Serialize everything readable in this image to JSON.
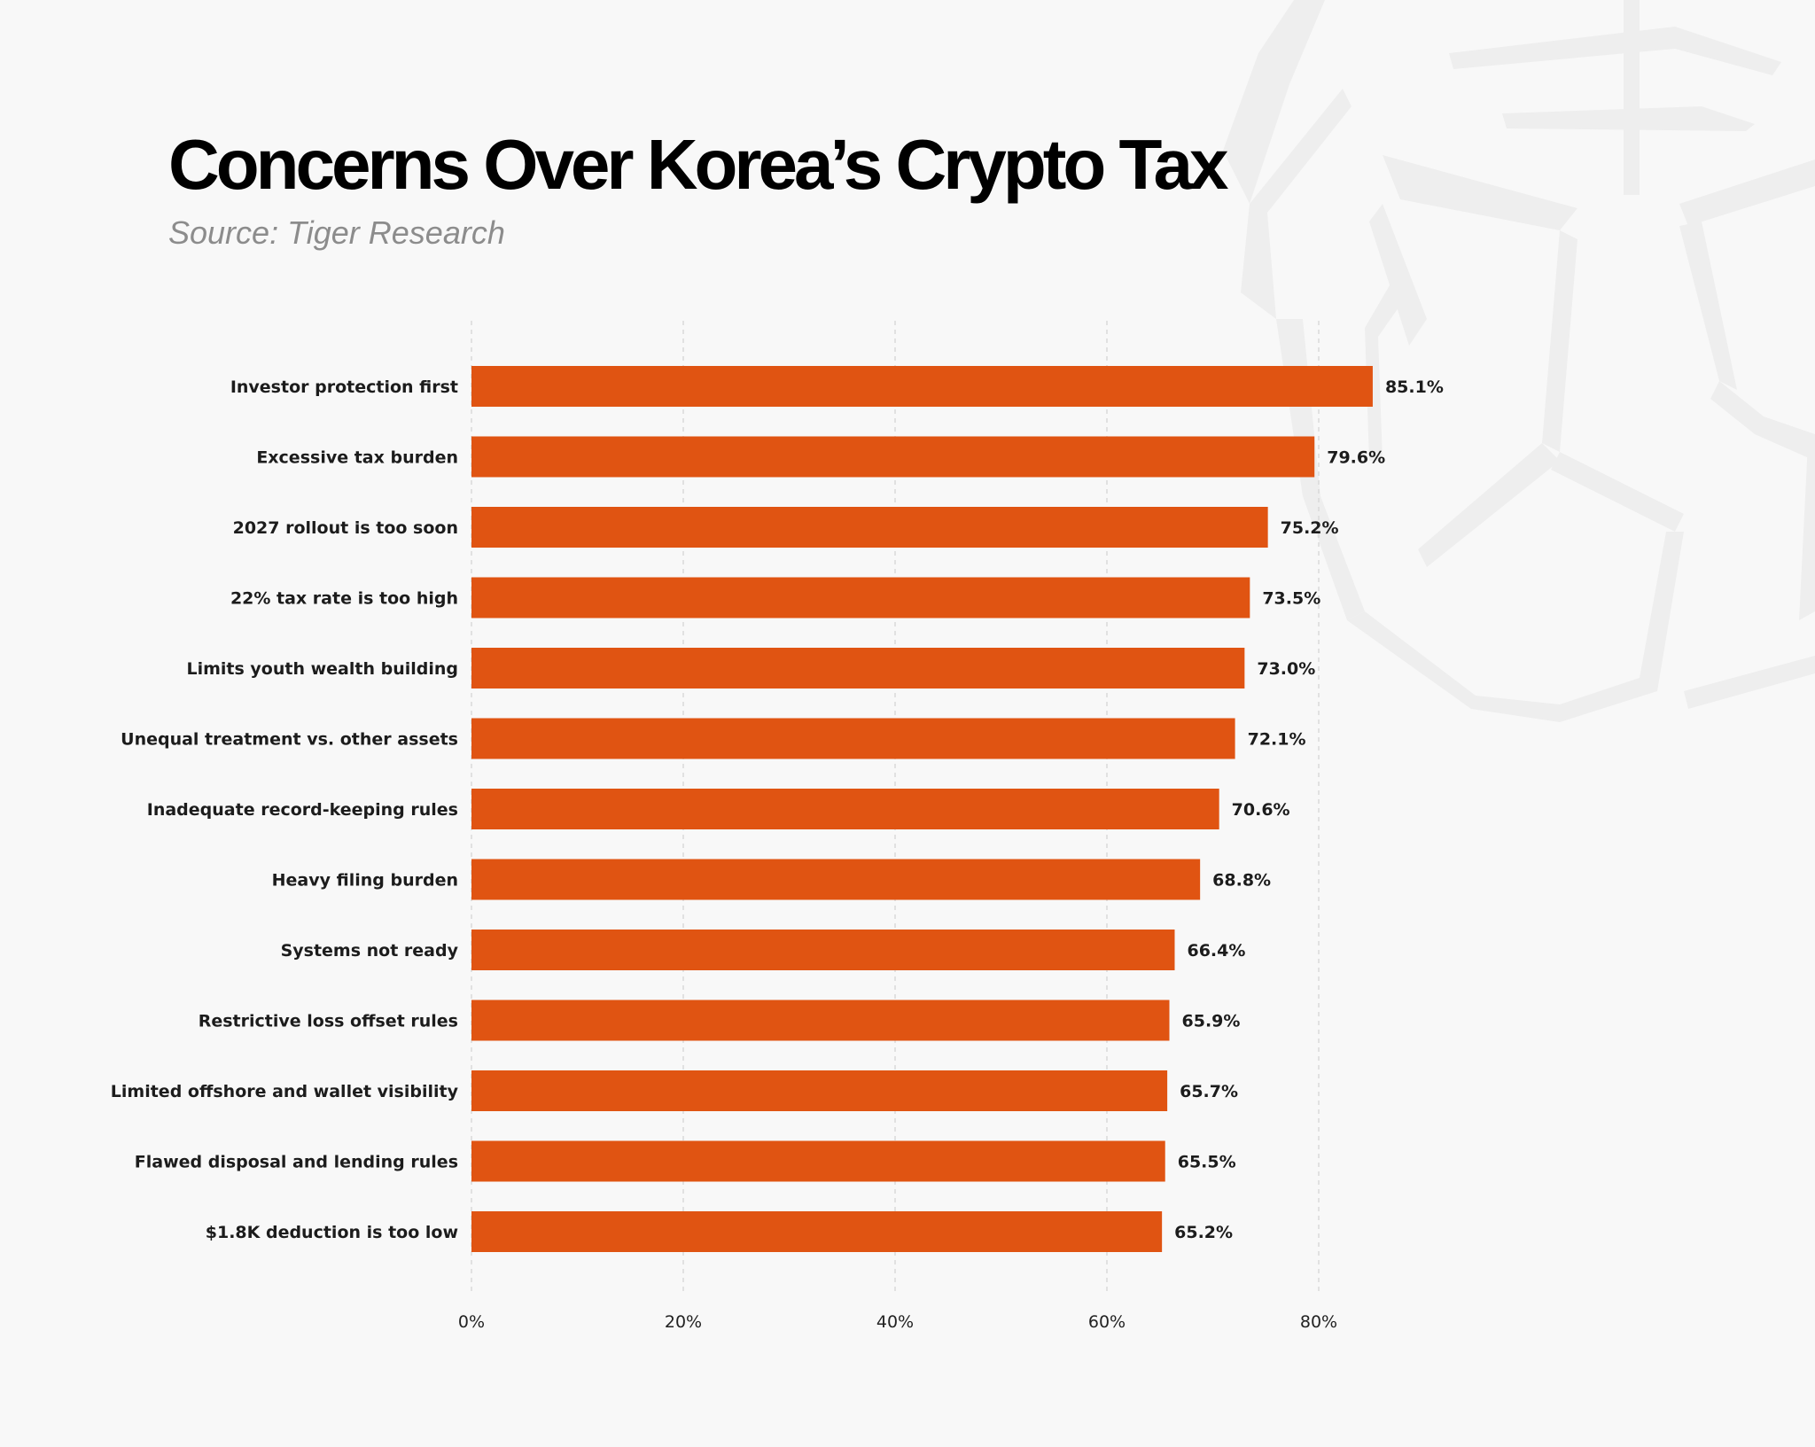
{
  "header": {
    "title": "Concerns Over Korea’s Crypto Tax",
    "subtitle": "Source: Tiger Research"
  },
  "chart_data": {
    "type": "bar",
    "orientation": "horizontal",
    "title": "Concerns Over Korea’s Crypto Tax",
    "subtitle": "Source: Tiger Research",
    "categories": [
      "Investor protection first",
      "Excessive tax burden",
      "2027 rollout is too soon",
      "22% tax rate is too high",
      "Limits youth wealth building",
      "Unequal treatment vs. other assets",
      "Inadequate record-keeping rules",
      "Heavy filing burden",
      "Systems not ready",
      "Restrictive loss offset rules",
      "Limited offshore and wallet visibility",
      "Flawed disposal and lending rules",
      "$1.8K deduction is too low"
    ],
    "values": [
      85.1,
      79.6,
      75.2,
      73.5,
      73.0,
      72.1,
      70.6,
      68.8,
      66.4,
      65.9,
      65.7,
      65.5,
      65.2
    ],
    "value_labels": [
      "85.1%",
      "79.6%",
      "75.2%",
      "73.5%",
      "73.0%",
      "72.1%",
      "70.6%",
      "68.8%",
      "66.4%",
      "65.9%",
      "65.7%",
      "65.5%",
      "65.2%"
    ],
    "xticks": [
      0,
      20,
      40,
      60,
      80
    ],
    "xtick_labels": [
      "0%",
      "20%",
      "40%",
      "60%",
      "80%"
    ],
    "xlim": [
      0,
      100
    ],
    "xlabel": "",
    "ylabel": "",
    "grid": "vertical dashed",
    "legend": "none",
    "colors": {
      "bar": "#e05412",
      "grid": "#d9d9d9",
      "background": "#f8f8f8"
    }
  }
}
